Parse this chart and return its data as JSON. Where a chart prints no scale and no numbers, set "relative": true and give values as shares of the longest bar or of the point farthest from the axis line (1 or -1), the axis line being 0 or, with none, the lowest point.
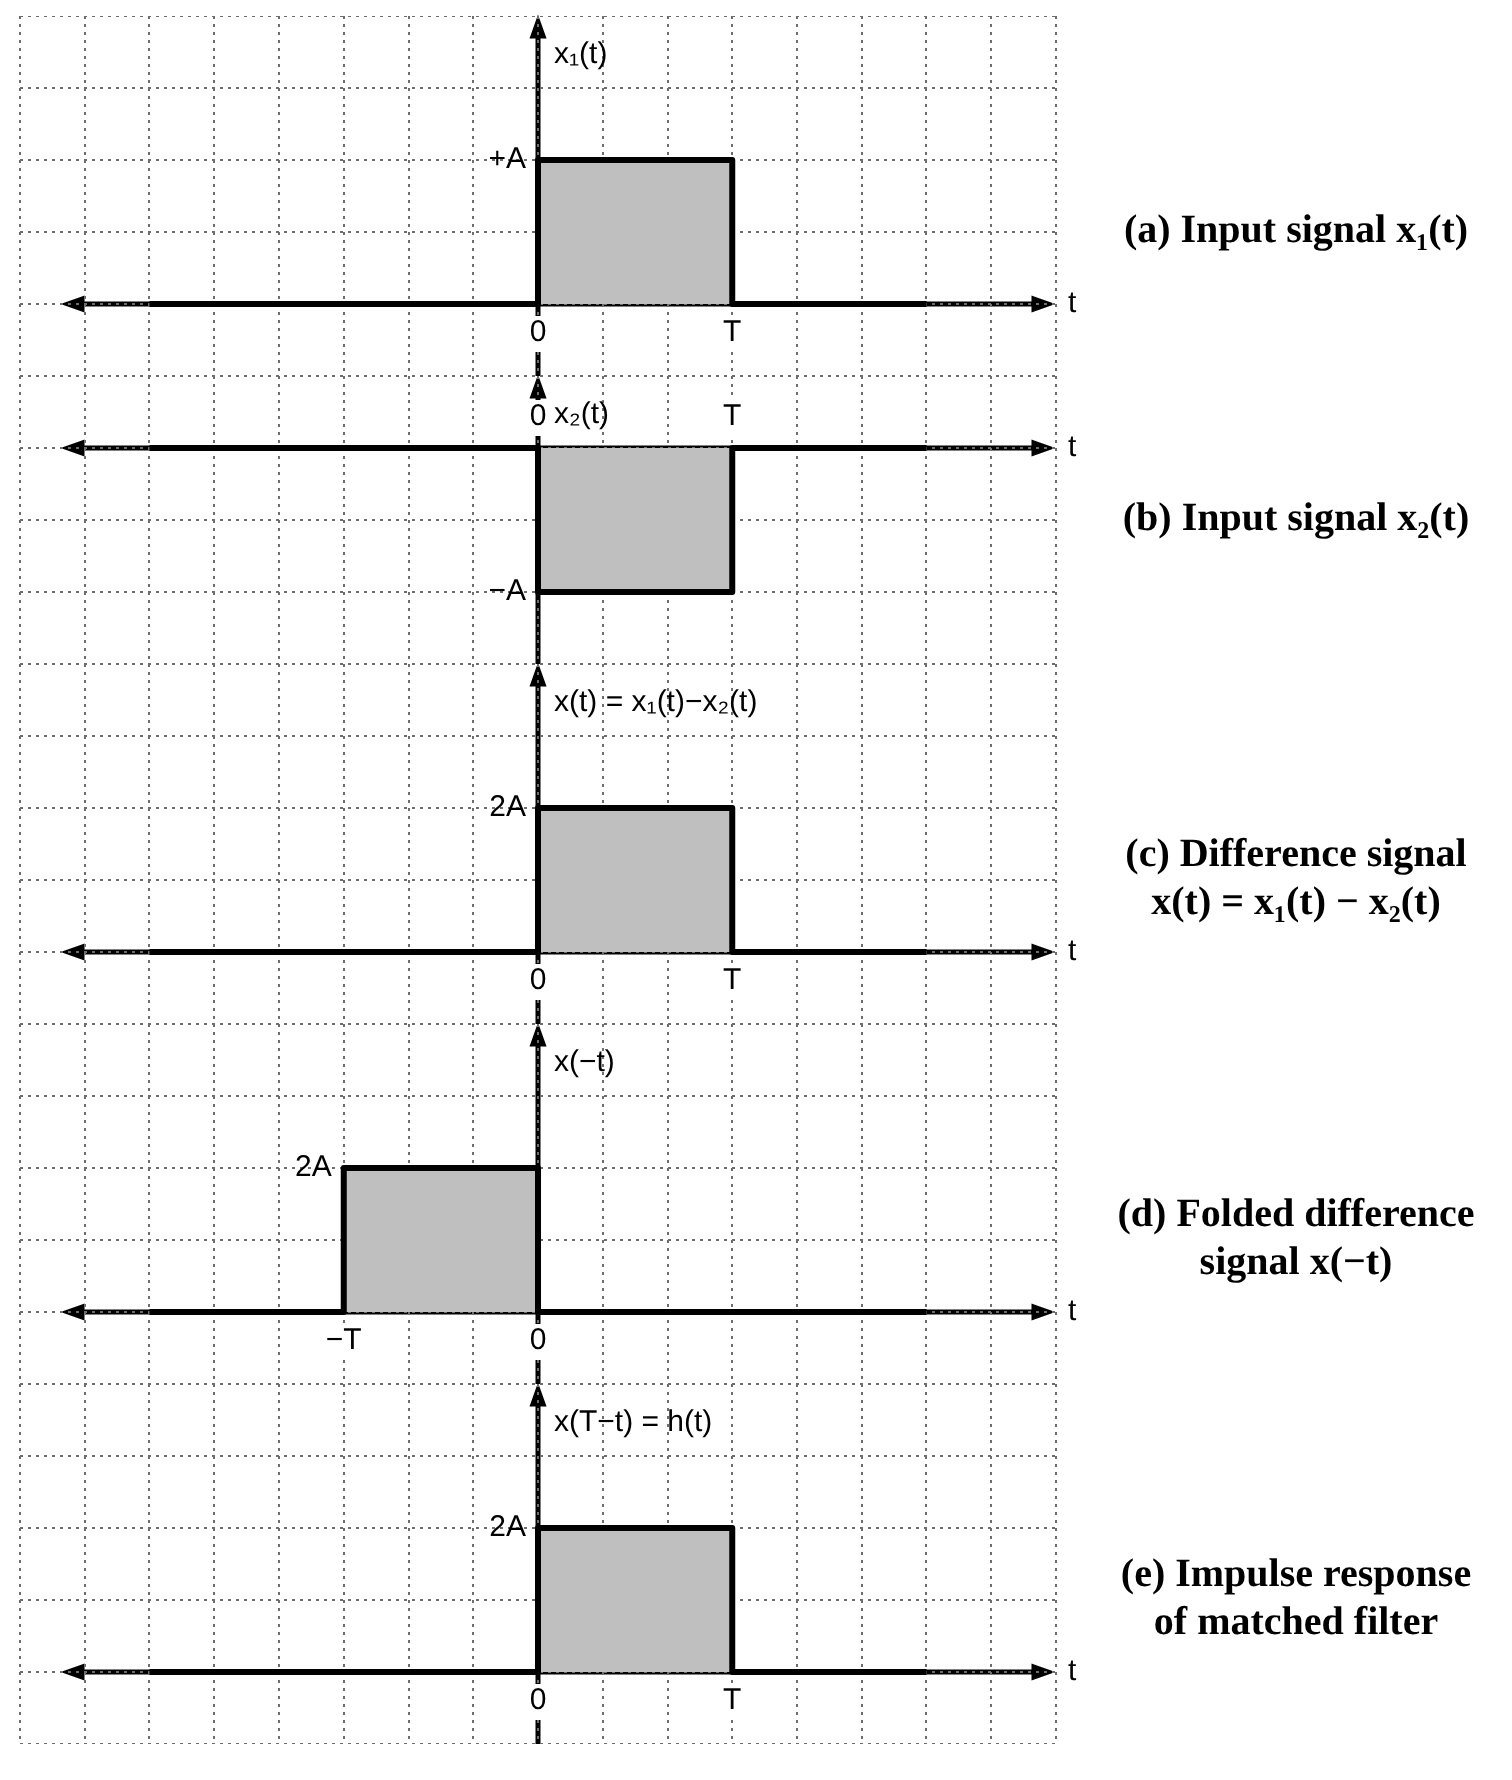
{
  "chart_data": [
    {
      "type": "step",
      "relative": true,
      "xlabel": "t",
      "ylabel": "x₁(t)",
      "categories": [
        null,
        null,
        "0",
        "T",
        null
      ],
      "values": [
        0,
        0,
        1,
        0,
        0
      ],
      "color": "#000000",
      "annotations": [
        "+A",
        "(a) Input signal x₁(t)"
      ],
      "grid": true
    },
    {
      "type": "step",
      "relative": true,
      "xlabel": "t",
      "ylabel": "x₂(t)",
      "categories": [
        null,
        null,
        "0",
        "T",
        null
      ],
      "values": [
        0,
        0,
        -1,
        0,
        0
      ],
      "color": "#000000",
      "annotations": [
        "−A",
        "(b) Input signal x₂(t)"
      ],
      "grid": true
    },
    {
      "type": "step",
      "relative": true,
      "xlabel": "t",
      "ylabel": "x(t) = x₁(t)−x₂(t)",
      "categories": [
        null,
        null,
        "0",
        "T",
        null
      ],
      "values": [
        0,
        0,
        1,
        0,
        0
      ],
      "color": "#000000",
      "annotations": [
        "2A",
        "(c) Difference signal x(t) = x₁(t) − x₂(t)"
      ],
      "grid": true
    },
    {
      "type": "step",
      "relative": true,
      "xlabel": "t",
      "ylabel": "x(−t)",
      "categories": [
        null,
        "−T",
        "0",
        null,
        null
      ],
      "values": [
        0,
        1,
        0,
        0,
        0
      ],
      "color": "#000000",
      "annotations": [
        "2A",
        "(d) Folded difference signal x(−t)"
      ],
      "grid": true
    },
    {
      "type": "step",
      "relative": true,
      "xlabel": "t",
      "ylabel": "x(T−t) = h(t)",
      "categories": [
        null,
        null,
        "0",
        "T",
        null
      ],
      "values": [
        0,
        0,
        1,
        0,
        0
      ],
      "color": "#000000",
      "annotations": [
        "2A",
        "(e) Impulse response of matched filter"
      ],
      "grid": true
    }
  ]
}
